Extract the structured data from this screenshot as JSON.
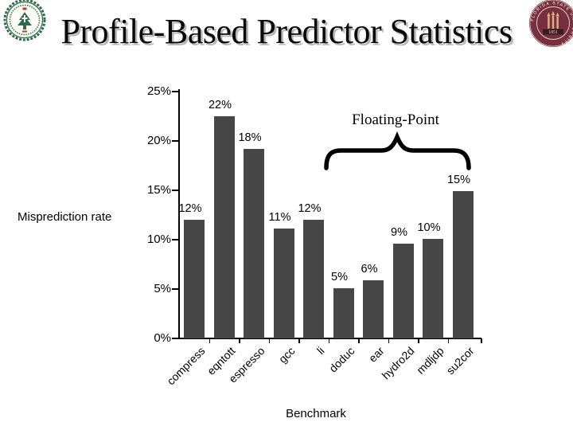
{
  "slide": {
    "title": "Profile-Based Predictor Statistics"
  },
  "logos": {
    "left_seal": {
      "name": "green-university-seal"
    },
    "fsu_seal": {
      "ring_text": "FLORIDA STATE UNIVERSITY",
      "year": "1851",
      "garnet": "#782F40",
      "gold": "#d9b380"
    }
  },
  "chart_data": {
    "type": "bar",
    "title": "",
    "xlabel": "Benchmark",
    "ylabel": "Misprediction rate",
    "categories": [
      "compress",
      "eqntott",
      "espresso",
      "gcc",
      "li",
      "doduc",
      "ear",
      "hydro2d",
      "mdljdp",
      "su2cor"
    ],
    "values": [
      12,
      22,
      18,
      11,
      12,
      5,
      6,
      9,
      10,
      15
    ],
    "value_labels": [
      "12%",
      "22%",
      "18%",
      "11%",
      "12%",
      "5%",
      "6%",
      "9%",
      "10%",
      "15%"
    ],
    "render_heights_pct": [
      12,
      22.5,
      19.2,
      11.1,
      12,
      5.1,
      5.9,
      9.6,
      10.1,
      14.9
    ],
    "ylim": [
      0,
      25
    ],
    "ytick_values": [
      0,
      5,
      10,
      15,
      20,
      25
    ],
    "ytick_labels": [
      "0%",
      "5%",
      "10%",
      "15%",
      "20%",
      "25%"
    ],
    "grid": false,
    "legend": "none",
    "bar_color": "#474747",
    "annotation": {
      "label": "Floating-Point",
      "covers": [
        "doduc",
        "ear",
        "hydro2d",
        "mdljdp",
        "su2cor"
      ]
    }
  }
}
